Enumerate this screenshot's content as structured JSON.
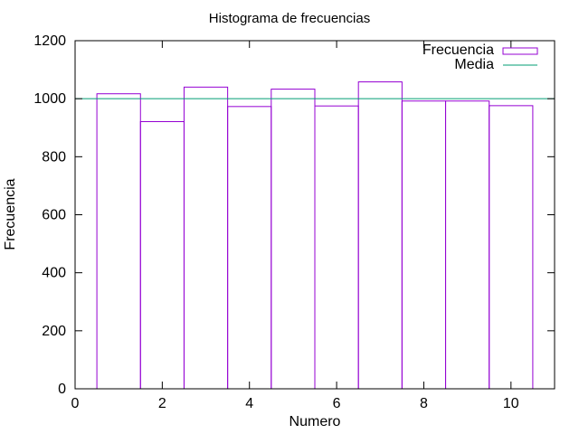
{
  "chart_data": {
    "type": "bar",
    "title": "Histograma de frecuencias",
    "xlabel": "Numero",
    "ylabel": "Frecuencia",
    "xlim": [
      0,
      11
    ],
    "ylim": [
      0,
      1200
    ],
    "xticks": [
      0,
      2,
      4,
      6,
      8,
      10
    ],
    "yticks": [
      0,
      200,
      400,
      600,
      800,
      1000,
      1200
    ],
    "grid": false,
    "legend_position": "top-right",
    "categories": [
      1,
      2,
      3,
      4,
      5,
      6,
      7,
      8,
      9,
      10
    ],
    "series": [
      {
        "name": "Frecuencia",
        "type": "bar",
        "color": "#9400d3",
        "values": [
          1017,
          921,
          1040,
          973,
          1033,
          975,
          1058,
          992,
          992,
          976
        ]
      },
      {
        "name": "Media",
        "type": "hline",
        "color": "#009e73",
        "value": 1000
      }
    ]
  }
}
